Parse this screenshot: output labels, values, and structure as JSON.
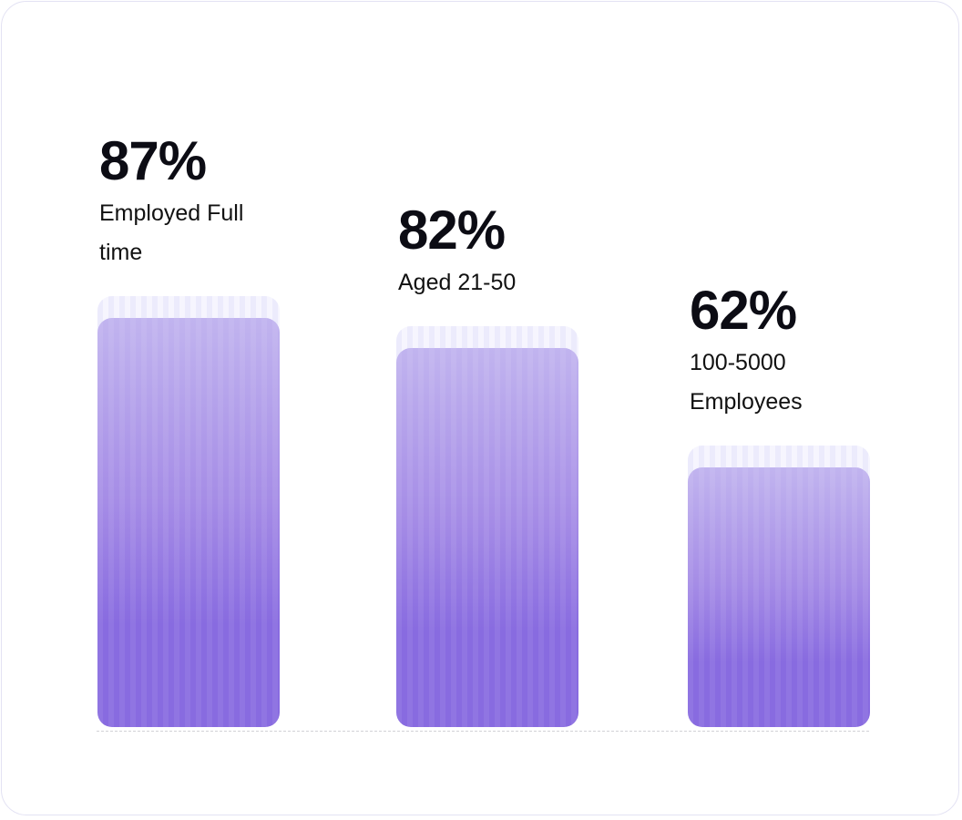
{
  "chart_data": {
    "type": "bar",
    "categories": [
      "Employed Full time",
      "Aged 21-50",
      "100-5000 Employees"
    ],
    "values": [
      87,
      82,
      62
    ],
    "value_labels": [
      "87%",
      "82%",
      "62%"
    ],
    "label_lines": [
      [
        "Employed Full",
        "time"
      ],
      [
        "Aged 21-50"
      ],
      [
        "100-5000",
        "Employees"
      ]
    ],
    "title": "",
    "xlabel": "",
    "ylabel": "",
    "ylim": [
      0,
      100
    ],
    "grid": false,
    "colors": {
      "bar_top": "#c1b4ef",
      "bar_bottom": "#886be0",
      "ghost": "#ecebfc",
      "border": "#e3e2f3"
    }
  }
}
